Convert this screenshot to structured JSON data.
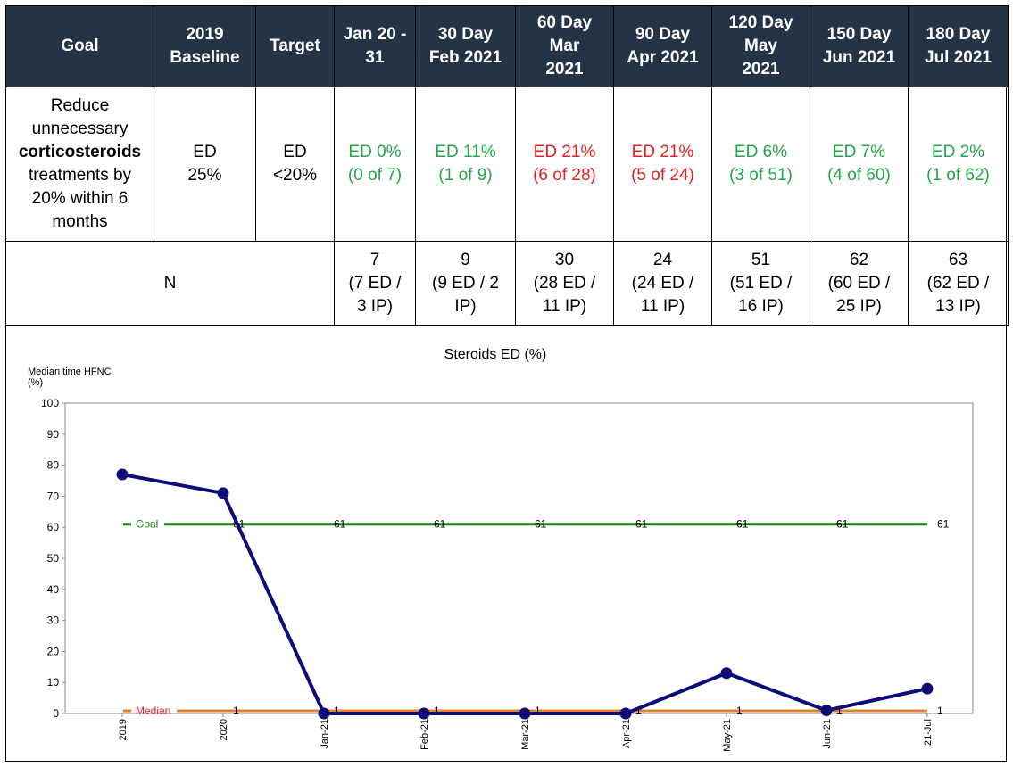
{
  "table": {
    "headers": [
      "Goal",
      "2019 Baseline",
      "Target",
      "Jan 20 - 31",
      "30 Day Feb 2021",
      "60 Day Mar 2021",
      "90 Day Apr 2021",
      "120 Day May 2021",
      "150 Day Jun 2021",
      "180 Day Jul 2021"
    ],
    "goal": {
      "line1": "Reduce unnecessary",
      "bold": "corticosteroids",
      "line2": "treatments by 20% within 6 months"
    },
    "baseline": "ED 25%",
    "target": "ED <20%",
    "results": [
      {
        "pct": "ED 0%",
        "detail": "(0 of 7)",
        "status": "green"
      },
      {
        "pct": "ED 11%",
        "detail": "(1 of 9)",
        "status": "green"
      },
      {
        "pct": "ED 21%",
        "detail": "(6 of 28)",
        "status": "red"
      },
      {
        "pct": "ED 21%",
        "detail": "(5 of 24)",
        "status": "red"
      },
      {
        "pct": "ED 6%",
        "detail": "(3 of 51)",
        "status": "green"
      },
      {
        "pct": "ED 7%",
        "detail": "(4 of 60)",
        "status": "green"
      },
      {
        "pct": "ED 2%",
        "detail": "(1 of 62)",
        "status": "green"
      }
    ],
    "n_label": "N",
    "n_values": [
      {
        "n": "7",
        "detail": "(7 ED / 3 IP)"
      },
      {
        "n": "9",
        "detail": "(9 ED / 2 IP)"
      },
      {
        "n": "30",
        "detail": "(28 ED / 11 IP)"
      },
      {
        "n": "24",
        "detail": "(24 ED / 11 IP)"
      },
      {
        "n": "51",
        "detail": "(51 ED / 16 IP)"
      },
      {
        "n": "62",
        "detail": "(60 ED / 25 IP)"
      },
      {
        "n": "63",
        "detail": "(62 ED / 13 IP)"
      }
    ],
    "colors": {
      "header_bg": "#243446",
      "green": "#23a54a",
      "red": "#e02020"
    }
  },
  "chart_data": {
    "type": "line",
    "title": "Steroids ED (%)",
    "ylabel": "Median time HFNC (%)",
    "ylim": [
      0,
      100
    ],
    "yticks": [
      0,
      10,
      20,
      30,
      40,
      50,
      60,
      70,
      80,
      90,
      100
    ],
    "categories": [
      "2019",
      "2020",
      "Jan-21",
      "Feb-21",
      "Mar-21",
      "Apr-21",
      "May-21",
      "Jun-21",
      "21-Jul"
    ],
    "series": [
      {
        "values": [
          77,
          71,
          0,
          0,
          0,
          0,
          13,
          1,
          8
        ],
        "color": "#0d0d7a"
      },
      {
        "name": "Goal",
        "values": [
          61,
          61,
          61,
          61,
          61,
          61,
          61,
          61,
          61
        ],
        "color": "#1a7f1a",
        "point_labels": [
          "",
          "61",
          "61",
          "61",
          "61",
          "61",
          "61",
          "61",
          "61"
        ]
      },
      {
        "name": "Median",
        "values": [
          1,
          1,
          1,
          1,
          1,
          1,
          1,
          1,
          1
        ],
        "color": "#e8802a",
        "point_labels": [
          "",
          "1",
          "1",
          "1",
          "1",
          "1",
          "1",
          "1",
          "1"
        ]
      }
    ],
    "grid": false,
    "legend": "inline-left"
  }
}
